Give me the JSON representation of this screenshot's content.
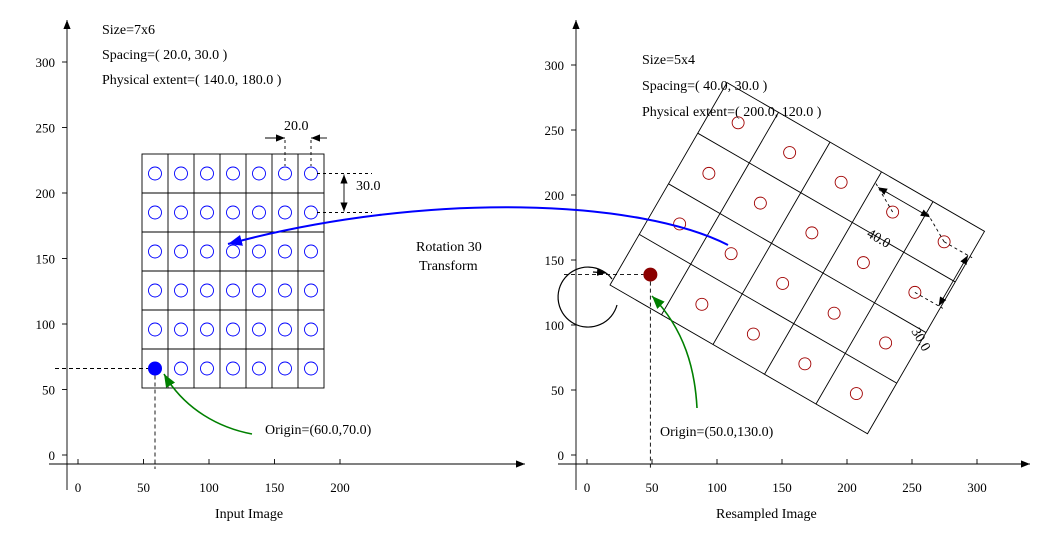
{
  "left_panel": {
    "size_label": "Size=7x6",
    "spacing_label": "Spacing=( 20.0, 30.0 )",
    "extent_label": "Physical extent=( 140.0, 180.0 )",
    "x_ticks": [
      "0",
      "50",
      "100",
      "150",
      "200"
    ],
    "y_ticks": [
      "0",
      "50",
      "100",
      "150",
      "200",
      "250",
      "300"
    ],
    "dim_x_label": "20.0",
    "dim_y_label": "30.0",
    "origin_label": "Origin=(60.0,70.0)",
    "caption": "Input Image",
    "grid": {
      "cols": 7,
      "rows": 6,
      "origin": [
        60,
        70
      ],
      "spacing": [
        20,
        30
      ]
    },
    "accent_color": "#0000ff",
    "origin_color": "#0000ff"
  },
  "right_panel": {
    "size_label": "Size=5x4",
    "spacing_label": "Spacing=( 40.0, 30.0 )",
    "extent_label": "Physical extent=( 200.0, 120.0 )",
    "x_ticks": [
      "0",
      "50",
      "100",
      "150",
      "200",
      "250",
      "300"
    ],
    "y_ticks": [
      "0",
      "50",
      "100",
      "150",
      "200",
      "250",
      "300"
    ],
    "dim_x_label": "40.0",
    "dim_y_label": "30.0",
    "origin_label": "Origin=(50.0,130.0)",
    "caption": "Resampled Image",
    "grid": {
      "cols": 5,
      "rows": 4,
      "origin": [
        50,
        130
      ],
      "spacing": [
        40,
        30
      ],
      "rotation_deg": 30
    },
    "accent_color": "#a00000",
    "origin_color": "#8b0000"
  },
  "transform": {
    "line1": "Rotation 30",
    "line2": "Transform",
    "arrow_color": "#0000ff",
    "origin_arrow_color": "#008000"
  }
}
